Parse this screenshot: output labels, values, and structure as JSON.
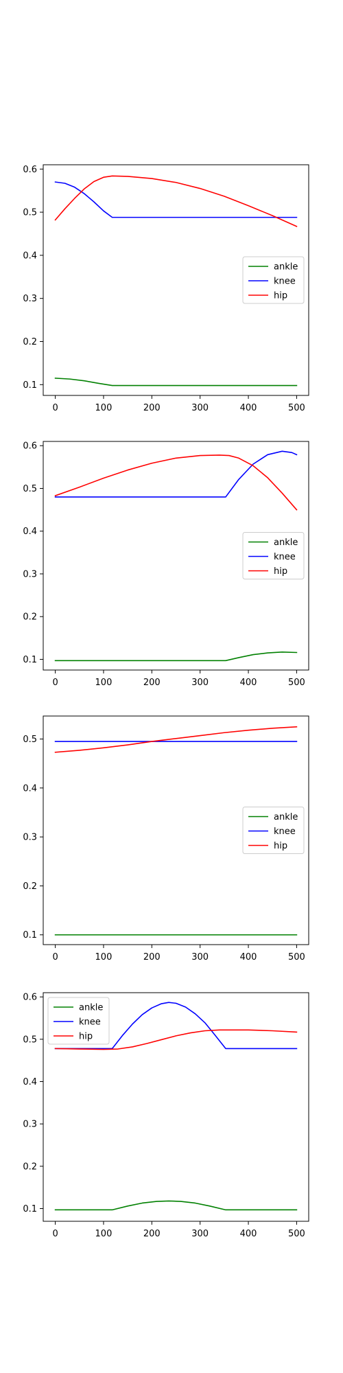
{
  "chart_data": [
    {
      "type": "line",
      "xlim": [
        -25,
        525
      ],
      "ylim": [
        0.075,
        0.61
      ],
      "xticks": [
        0,
        100,
        200,
        300,
        400,
        500
      ],
      "yticks": [
        0.1,
        0.2,
        0.3,
        0.4,
        0.5,
        0.6
      ],
      "grid": false,
      "legend_position": "center-right",
      "series": [
        {
          "name": "ankle",
          "color": "#008000",
          "x": [
            0,
            30,
            60,
            90,
            118,
            150,
            200,
            300,
            400,
            500
          ],
          "y": [
            0.115,
            0.113,
            0.109,
            0.103,
            0.098,
            0.098,
            0.098,
            0.098,
            0.098,
            0.098
          ]
        },
        {
          "name": "knee",
          "color": "#0000ff",
          "x": [
            0,
            20,
            40,
            60,
            80,
            100,
            118,
            150,
            200,
            300,
            400,
            500
          ],
          "y": [
            0.57,
            0.567,
            0.558,
            0.543,
            0.524,
            0.503,
            0.488,
            0.488,
            0.488,
            0.488,
            0.488,
            0.488
          ]
        },
        {
          "name": "hip",
          "color": "#ff0000",
          "x": [
            0,
            20,
            40,
            60,
            80,
            100,
            118,
            150,
            200,
            250,
            300,
            350,
            400,
            450,
            500
          ],
          "y": [
            0.482,
            0.508,
            0.532,
            0.554,
            0.571,
            0.581,
            0.584,
            0.583,
            0.578,
            0.569,
            0.555,
            0.537,
            0.515,
            0.492,
            0.467
          ]
        }
      ]
    },
    {
      "type": "line",
      "xlim": [
        -25,
        525
      ],
      "ylim": [
        0.075,
        0.61
      ],
      "xticks": [
        0,
        100,
        200,
        300,
        400,
        500
      ],
      "yticks": [
        0.1,
        0.2,
        0.3,
        0.4,
        0.5,
        0.6
      ],
      "grid": false,
      "legend_position": "center-right",
      "series": [
        {
          "name": "ankle",
          "color": "#008000",
          "x": [
            0,
            100,
            200,
            300,
            353,
            380,
            410,
            440,
            470,
            500
          ],
          "y": [
            0.097,
            0.097,
            0.097,
            0.097,
            0.097,
            0.104,
            0.111,
            0.115,
            0.117,
            0.116
          ]
        },
        {
          "name": "knee",
          "color": "#0000ff",
          "x": [
            0,
            100,
            200,
            300,
            353,
            380,
            410,
            440,
            470,
            490,
            500
          ],
          "y": [
            0.48,
            0.48,
            0.48,
            0.48,
            0.48,
            0.521,
            0.557,
            0.579,
            0.587,
            0.584,
            0.579
          ]
        },
        {
          "name": "hip",
          "color": "#ff0000",
          "x": [
            0,
            50,
            100,
            150,
            200,
            250,
            300,
            340,
            360,
            380,
            410,
            440,
            470,
            500
          ],
          "y": [
            0.483,
            0.503,
            0.524,
            0.543,
            0.559,
            0.571,
            0.577,
            0.578,
            0.577,
            0.571,
            0.553,
            0.525,
            0.489,
            0.45
          ]
        }
      ]
    },
    {
      "type": "line",
      "xlim": [
        -25,
        525
      ],
      "ylim": [
        0.08,
        0.547
      ],
      "xticks": [
        0,
        100,
        200,
        300,
        400,
        500
      ],
      "yticks": [
        0.1,
        0.2,
        0.3,
        0.4,
        0.5
      ],
      "grid": false,
      "legend_position": "center-right",
      "series": [
        {
          "name": "ankle",
          "color": "#008000",
          "x": [
            0,
            500
          ],
          "y": [
            0.1,
            0.1
          ]
        },
        {
          "name": "knee",
          "color": "#0000ff",
          "x": [
            0,
            500
          ],
          "y": [
            0.495,
            0.495
          ]
        },
        {
          "name": "hip",
          "color": "#ff0000",
          "x": [
            0,
            50,
            100,
            150,
            200,
            250,
            300,
            350,
            400,
            450,
            500
          ],
          "y": [
            0.473,
            0.477,
            0.482,
            0.488,
            0.495,
            0.501,
            0.507,
            0.513,
            0.518,
            0.522,
            0.525
          ]
        }
      ]
    },
    {
      "type": "line",
      "xlim": [
        -25,
        525
      ],
      "ylim": [
        0.07,
        0.61
      ],
      "xticks": [
        0,
        100,
        200,
        300,
        400,
        500
      ],
      "yticks": [
        0.1,
        0.2,
        0.3,
        0.4,
        0.5,
        0.6
      ],
      "grid": false,
      "legend_position": "upper-left",
      "series": [
        {
          "name": "ankle",
          "color": "#008000",
          "x": [
            0,
            60,
            118,
            150,
            180,
            210,
            235,
            260,
            290,
            320,
            353,
            400,
            450,
            500
          ],
          "y": [
            0.097,
            0.097,
            0.097,
            0.106,
            0.113,
            0.117,
            0.118,
            0.117,
            0.113,
            0.106,
            0.097,
            0.097,
            0.097,
            0.097
          ]
        },
        {
          "name": "knee",
          "color": "#0000ff",
          "x": [
            0,
            60,
            118,
            140,
            160,
            180,
            200,
            220,
            235,
            250,
            270,
            290,
            310,
            330,
            353,
            400,
            450,
            500
          ],
          "y": [
            0.478,
            0.478,
            0.478,
            0.51,
            0.536,
            0.558,
            0.574,
            0.584,
            0.587,
            0.585,
            0.576,
            0.56,
            0.539,
            0.511,
            0.478,
            0.478,
            0.478,
            0.478
          ]
        },
        {
          "name": "hip",
          "color": "#ff0000",
          "x": [
            0,
            50,
            100,
            130,
            160,
            190,
            220,
            250,
            280,
            310,
            340,
            370,
            400,
            450,
            500
          ],
          "y": [
            0.478,
            0.477,
            0.476,
            0.477,
            0.482,
            0.49,
            0.499,
            0.508,
            0.515,
            0.52,
            0.522,
            0.522,
            0.522,
            0.52,
            0.517
          ]
        }
      ]
    }
  ]
}
